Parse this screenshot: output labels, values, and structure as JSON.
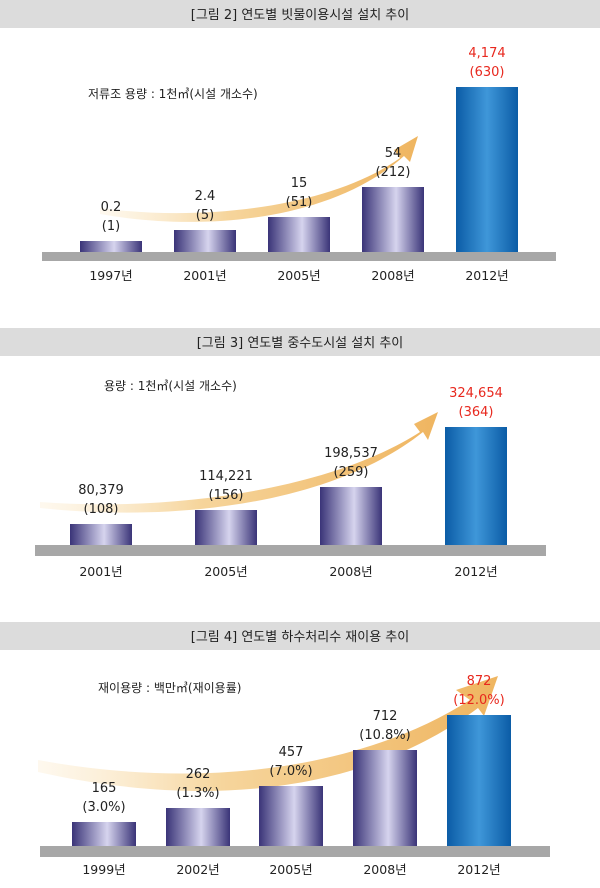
{
  "colors": {
    "title_band": "#dcdcdc",
    "axis_bar": "#a7a7a7",
    "bar_purple_dark": "#3a3478",
    "bar_purple_light": "#d6d4ee",
    "bar_blue_dark": "#0b5ca6",
    "bar_blue_light": "#3f97d9",
    "arrow": "#f1c27a",
    "highlight_text": "#e8281e",
    "text": "#222222"
  },
  "chart_data": [
    {
      "type": "bar",
      "title": "[그림 2] 연도별 빗물이용시설 설치 추이",
      "unit_label": "저류조 용량 : 1천㎥(시설 개소수)",
      "categories": [
        "1997년",
        "2001년",
        "2005년",
        "2008년",
        "2012년"
      ],
      "values": [
        0.2,
        2.4,
        15,
        54,
        4174
      ],
      "value_labels": [
        "0.2",
        "2.4",
        "15",
        "54",
        "4,174"
      ],
      "sub_labels": [
        "(1)",
        "(5)",
        "(51)",
        "(212)",
        "(630)"
      ],
      "highlight_index": 4,
      "scale": "non-linear (illustrative)"
    },
    {
      "type": "bar",
      "title": "[그림 3] 연도별 중수도시설 설치 추이",
      "unit_label": "용량 : 1천㎥(시설 개소수)",
      "categories": [
        "2001년",
        "2005년",
        "2008년",
        "2012년"
      ],
      "values": [
        80379,
        114221,
        198537,
        324654
      ],
      "value_labels": [
        "80,379",
        "114,221",
        "198,537",
        "324,654"
      ],
      "sub_labels": [
        "(108)",
        "(156)",
        "(259)",
        "(364)"
      ],
      "highlight_index": 3,
      "scale": "non-linear (illustrative)"
    },
    {
      "type": "bar",
      "title": "[그림 4] 연도별 하수처리수 재이용 추이",
      "unit_label": "재이용량 : 백만㎥(재이용률)",
      "categories": [
        "1999년",
        "2002년",
        "2005년",
        "2008년",
        "2012년"
      ],
      "values": [
        165,
        262,
        457,
        712,
        872
      ],
      "value_labels": [
        "165",
        "262",
        "457",
        "712",
        "872"
      ],
      "sub_labels": [
        "(3.0%)",
        "(1.3%)",
        "(7.0%)",
        "(10.8%)",
        "(12.0%)"
      ],
      "highlight_index": 4,
      "scale": "non-linear (illustrative)"
    }
  ]
}
